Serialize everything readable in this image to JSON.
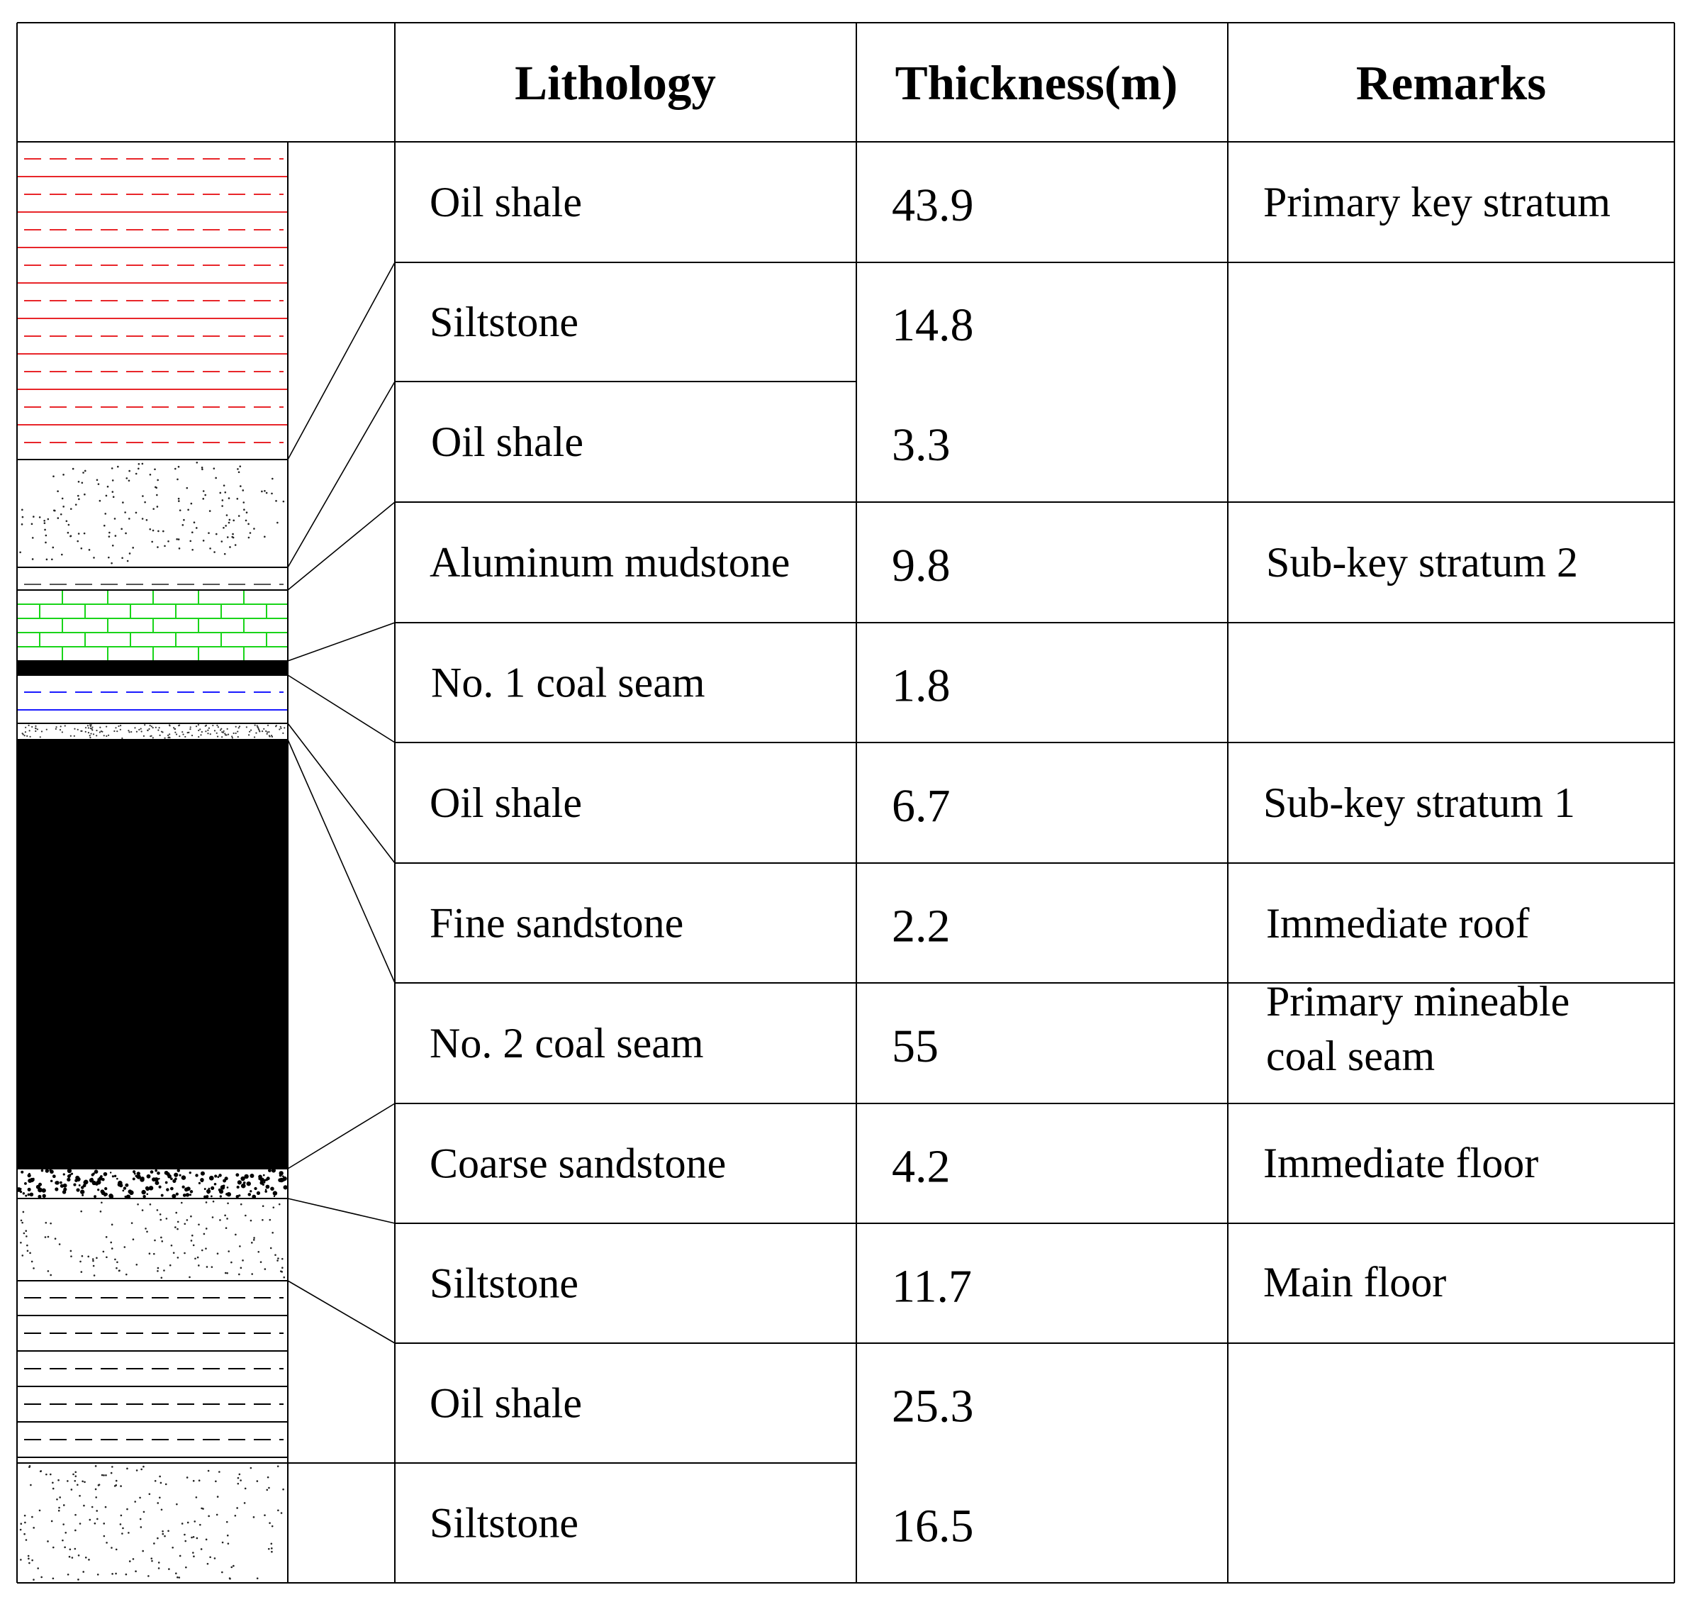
{
  "header": {
    "lithology": "Lithology",
    "thickness": "Thickness(m)",
    "remarks": "Remarks"
  },
  "rows": [
    {
      "lithology": "Oil shale",
      "thickness": "43.9"
    },
    {
      "lithology": "Siltstone",
      "thickness": "14.8"
    },
    {
      "lithology": "Oil shale",
      "thickness": "3.3"
    },
    {
      "lithology": "Aluminum mudstone",
      "thickness": "9.8"
    },
    {
      "lithology": "No. 1 coal seam",
      "thickness": "1.8"
    },
    {
      "lithology": "Oil shale",
      "thickness": "6.7"
    },
    {
      "lithology": "Fine sandstone",
      "thickness": "2.2"
    },
    {
      "lithology": "No. 2 coal seam",
      "thickness": "55"
    },
    {
      "lithology": "Coarse sandstone",
      "thickness": "4.2"
    },
    {
      "lithology": "Siltstone",
      "thickness": "11.7"
    },
    {
      "lithology": "Oil shale",
      "thickness": "25.3"
    },
    {
      "lithology": "Siltstone",
      "thickness": "16.5"
    }
  ],
  "remarks": [
    {
      "lines": [
        "Primary key stratum"
      ]
    },
    {
      "lines": [
        "Sub-key stratum 2"
      ]
    },
    {
      "lines": [
        "Sub-key stratum 1"
      ]
    },
    {
      "lines": [
        "Immediate roof"
      ]
    },
    {
      "lines": [
        "Primary mineable",
        "coal seam"
      ]
    },
    {
      "lines": [
        "Immediate floor"
      ]
    },
    {
      "lines": [
        "Main floor"
      ]
    }
  ],
  "column_patterns": [
    {
      "pattern": "shale",
      "color": "#e8262a"
    },
    {
      "pattern": "silt",
      "color": "#000000"
    },
    {
      "pattern": "shale",
      "color": "#555555"
    },
    {
      "pattern": "brick",
      "color": "#19d419"
    },
    {
      "pattern": "coal",
      "color": "#000000"
    },
    {
      "pattern": "shale",
      "color": "#1a1aff"
    },
    {
      "pattern": "sand-fine",
      "color": "#000000"
    },
    {
      "pattern": "coal",
      "color": "#000000"
    },
    {
      "pattern": "sand-coarse",
      "color": "#000000"
    },
    {
      "pattern": "silt",
      "color": "#000000"
    },
    {
      "pattern": "shale",
      "color": "#000000"
    },
    {
      "pattern": "silt",
      "color": "#000000"
    }
  ]
}
